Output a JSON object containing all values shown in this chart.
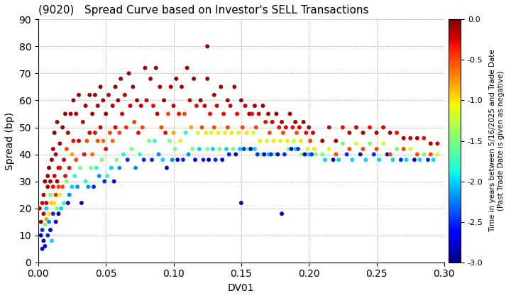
{
  "title": "(9020)   Spread Curve based on Investor's SELL Transactions",
  "xlabel": "DV01",
  "ylabel": "Spread (bp)",
  "xlim": [
    0.0,
    0.3
  ],
  "ylim": [
    0,
    90
  ],
  "xticks": [
    0.0,
    0.05,
    0.1,
    0.15,
    0.2,
    0.25,
    0.3
  ],
  "yticks": [
    0,
    10,
    20,
    30,
    40,
    50,
    60,
    70,
    80,
    90
  ],
  "colorbar_label": "Time in years between 5/16/2025 and Trade Date\n(Past Trade Date is given as negative)",
  "colorbar_vmin": -3.0,
  "colorbar_vmax": 0.0,
  "colorbar_ticks": [
    0.0,
    -0.5,
    -1.0,
    -1.5,
    -2.0,
    -2.5,
    -3.0
  ],
  "marker_size": 18,
  "background_color": "#ffffff",
  "grid_color": "#999999",
  "points": [
    [
      0.001,
      20,
      -0.1
    ],
    [
      0.002,
      15,
      -0.05
    ],
    [
      0.002,
      10,
      -2.9
    ],
    [
      0.003,
      5,
      -2.8
    ],
    [
      0.003,
      12,
      -2.5
    ],
    [
      0.003,
      22,
      -0.2
    ],
    [
      0.004,
      8,
      -2.9
    ],
    [
      0.004,
      18,
      -0.15
    ],
    [
      0.004,
      25,
      -0.1
    ],
    [
      0.005,
      14,
      -1.5
    ],
    [
      0.005,
      30,
      -0.05
    ],
    [
      0.005,
      6,
      -2.7
    ],
    [
      0.006,
      20,
      -2.0
    ],
    [
      0.006,
      22,
      -0.2
    ],
    [
      0.006,
      16,
      -0.8
    ],
    [
      0.007,
      28,
      -0.1
    ],
    [
      0.007,
      10,
      -2.5
    ],
    [
      0.007,
      32,
      -0.08
    ],
    [
      0.008,
      18,
      -1.0
    ],
    [
      0.008,
      35,
      -0.05
    ],
    [
      0.008,
      15,
      -2.2
    ],
    [
      0.009,
      25,
      -1.5
    ],
    [
      0.009,
      12,
      -2.8
    ],
    [
      0.009,
      30,
      -0.15
    ],
    [
      0.01,
      22,
      -0.9
    ],
    [
      0.01,
      8,
      -2.0
    ],
    [
      0.01,
      38,
      -0.05
    ],
    [
      0.011,
      28,
      -0.3
    ],
    [
      0.011,
      18,
      -2.5
    ],
    [
      0.011,
      42,
      -0.1
    ],
    [
      0.012,
      32,
      -0.2
    ],
    [
      0.012,
      22,
      -1.0
    ],
    [
      0.012,
      48,
      -0.05
    ],
    [
      0.013,
      25,
      -0.4
    ],
    [
      0.013,
      15,
      -2.8
    ],
    [
      0.013,
      40,
      -0.15
    ],
    [
      0.014,
      30,
      -0.1
    ],
    [
      0.014,
      20,
      -1.5
    ],
    [
      0.014,
      52,
      -0.08
    ],
    [
      0.015,
      28,
      -0.5
    ],
    [
      0.015,
      35,
      -0.2
    ],
    [
      0.015,
      18,
      -2.9
    ],
    [
      0.016,
      44,
      -0.1
    ],
    [
      0.016,
      25,
      -1.2
    ],
    [
      0.016,
      35,
      -0.3
    ],
    [
      0.017,
      20,
      -2.0
    ],
    [
      0.018,
      50,
      -0.05
    ],
    [
      0.018,
      28,
      -0.5
    ],
    [
      0.019,
      38,
      -0.2
    ],
    [
      0.019,
      22,
      -1.8
    ],
    [
      0.02,
      32,
      -0.3
    ],
    [
      0.02,
      55,
      -0.08
    ],
    [
      0.021,
      42,
      -0.5
    ],
    [
      0.021,
      30,
      -1.5
    ],
    [
      0.022,
      22,
      -2.8
    ],
    [
      0.022,
      48,
      -0.15
    ],
    [
      0.023,
      35,
      -0.3
    ],
    [
      0.023,
      25,
      -2.2
    ],
    [
      0.024,
      55,
      -0.1
    ],
    [
      0.025,
      40,
      -0.8
    ],
    [
      0.025,
      28,
      -2.0
    ],
    [
      0.026,
      60,
      -0.08
    ],
    [
      0.026,
      45,
      -0.3
    ],
    [
      0.027,
      32,
      -1.8
    ],
    [
      0.028,
      55,
      -0.15
    ],
    [
      0.028,
      38,
      -0.5
    ],
    [
      0.029,
      28,
      -2.2
    ],
    [
      0.03,
      62,
      -0.05
    ],
    [
      0.03,
      45,
      -0.2
    ],
    [
      0.031,
      35,
      -1.5
    ],
    [
      0.032,
      22,
      -2.8
    ],
    [
      0.033,
      52,
      -0.15
    ],
    [
      0.034,
      40,
      -0.3
    ],
    [
      0.035,
      30,
      -1.8
    ],
    [
      0.035,
      58,
      -0.1
    ],
    [
      0.036,
      45,
      -0.5
    ],
    [
      0.037,
      28,
      -2.2
    ],
    [
      0.038,
      62,
      -0.05
    ],
    [
      0.038,
      48,
      -0.2
    ],
    [
      0.039,
      35,
      -1.5
    ],
    [
      0.04,
      55,
      -0.1
    ],
    [
      0.04,
      40,
      -0.6
    ],
    [
      0.041,
      28,
      -2.5
    ],
    [
      0.042,
      62,
      -0.08
    ],
    [
      0.042,
      48,
      -0.3
    ],
    [
      0.043,
      35,
      -1.8
    ],
    [
      0.044,
      58,
      -0.15
    ],
    [
      0.044,
      45,
      -0.5
    ],
    [
      0.045,
      32,
      -2.2
    ],
    [
      0.046,
      65,
      -0.05
    ],
    [
      0.046,
      50,
      -0.2
    ],
    [
      0.047,
      38,
      -1.5
    ],
    [
      0.048,
      60,
      -0.1
    ],
    [
      0.048,
      45,
      -0.6
    ],
    [
      0.049,
      30,
      -2.5
    ],
    [
      0.05,
      55,
      -0.08
    ],
    [
      0.05,
      42,
      -0.3
    ],
    [
      0.051,
      32,
      -1.8
    ],
    [
      0.052,
      62,
      -0.15
    ],
    [
      0.053,
      48,
      -0.5
    ],
    [
      0.054,
      35,
      -2.0
    ],
    [
      0.055,
      58,
      -0.1
    ],
    [
      0.055,
      45,
      -0.6
    ],
    [
      0.056,
      30,
      -2.8
    ],
    [
      0.057,
      65,
      -0.05
    ],
    [
      0.057,
      50,
      -0.2
    ],
    [
      0.058,
      38,
      -1.5
    ],
    [
      0.059,
      60,
      -0.1
    ],
    [
      0.06,
      48,
      -0.5
    ],
    [
      0.06,
      35,
      -2.2
    ],
    [
      0.061,
      68,
      -0.08
    ],
    [
      0.062,
      55,
      -0.2
    ],
    [
      0.063,
      40,
      -1.8
    ],
    [
      0.064,
      62,
      -0.15
    ],
    [
      0.065,
      50,
      -0.4
    ],
    [
      0.066,
      38,
      -2.5
    ],
    [
      0.067,
      70,
      -0.05
    ],
    [
      0.068,
      58,
      -0.2
    ],
    [
      0.069,
      42,
      -1.5
    ],
    [
      0.07,
      65,
      -0.1
    ],
    [
      0.071,
      52,
      -0.5
    ],
    [
      0.072,
      35,
      -2.2
    ],
    [
      0.073,
      60,
      -0.08
    ],
    [
      0.074,
      48,
      -0.3
    ],
    [
      0.075,
      40,
      -1.8
    ],
    [
      0.076,
      58,
      -0.15
    ],
    [
      0.077,
      50,
      -0.5
    ],
    [
      0.078,
      38,
      -2.5
    ],
    [
      0.079,
      72,
      -0.08
    ],
    [
      0.08,
      60,
      -0.2
    ],
    [
      0.082,
      45,
      -1.5
    ],
    [
      0.083,
      68,
      -0.15
    ],
    [
      0.084,
      38,
      -2.5
    ],
    [
      0.085,
      58,
      -0.3
    ],
    [
      0.086,
      45,
      -1.8
    ],
    [
      0.087,
      72,
      -0.05
    ],
    [
      0.088,
      55,
      -0.2
    ],
    [
      0.089,
      40,
      -2.2
    ],
    [
      0.09,
      65,
      -0.1
    ],
    [
      0.091,
      50,
      -0.5
    ],
    [
      0.092,
      38,
      -2.0
    ],
    [
      0.093,
      60,
      -0.08
    ],
    [
      0.094,
      48,
      -0.3
    ],
    [
      0.095,
      35,
      -2.8
    ],
    [
      0.096,
      55,
      -0.5
    ],
    [
      0.097,
      45,
      -1.5
    ],
    [
      0.098,
      65,
      -0.1
    ],
    [
      0.099,
      38,
      -2.2
    ],
    [
      0.1,
      58,
      -0.2
    ],
    [
      0.1,
      48,
      -0.8
    ],
    [
      0.101,
      42,
      -1.5
    ],
    [
      0.102,
      68,
      -0.08
    ],
    [
      0.103,
      38,
      -2.8
    ],
    [
      0.104,
      55,
      -0.3
    ],
    [
      0.105,
      45,
      -1.2
    ],
    [
      0.106,
      65,
      -0.1
    ],
    [
      0.107,
      38,
      -2.5
    ],
    [
      0.108,
      55,
      -0.5
    ],
    [
      0.109,
      48,
      -1.8
    ],
    [
      0.11,
      72,
      -0.05
    ],
    [
      0.111,
      40,
      -2.2
    ],
    [
      0.112,
      60,
      -0.2
    ],
    [
      0.113,
      50,
      -0.8
    ],
    [
      0.114,
      42,
      -1.5
    ],
    [
      0.115,
      68,
      -0.08
    ],
    [
      0.116,
      38,
      -2.8
    ],
    [
      0.117,
      58,
      -0.3
    ],
    [
      0.118,
      48,
      -1.2
    ],
    [
      0.119,
      42,
      -2.0
    ],
    [
      0.12,
      60,
      -0.1
    ],
    [
      0.121,
      50,
      -0.5
    ],
    [
      0.122,
      38,
      -2.5
    ],
    [
      0.123,
      58,
      -0.2
    ],
    [
      0.124,
      48,
      -1.0
    ],
    [
      0.125,
      42,
      -1.5
    ],
    [
      0.125,
      68,
      -0.08
    ],
    [
      0.125,
      80,
      -0.05
    ],
    [
      0.126,
      38,
      -2.8
    ],
    [
      0.127,
      55,
      -0.3
    ],
    [
      0.128,
      48,
      -1.2
    ],
    [
      0.129,
      42,
      -2.0
    ],
    [
      0.13,
      62,
      -0.1
    ],
    [
      0.13,
      50,
      -0.5
    ],
    [
      0.131,
      38,
      -2.5
    ],
    [
      0.132,
      58,
      -0.2
    ],
    [
      0.133,
      48,
      -1.0
    ],
    [
      0.134,
      42,
      -1.5
    ],
    [
      0.135,
      65,
      -0.08
    ],
    [
      0.136,
      38,
      -2.8
    ],
    [
      0.137,
      55,
      -0.3
    ],
    [
      0.138,
      48,
      -1.2
    ],
    [
      0.139,
      42,
      -2.0
    ],
    [
      0.14,
      60,
      -0.1
    ],
    [
      0.14,
      50,
      -0.5
    ],
    [
      0.141,
      40,
      -2.5
    ],
    [
      0.142,
      58,
      -0.2
    ],
    [
      0.143,
      48,
      -1.0
    ],
    [
      0.144,
      42,
      -1.5
    ],
    [
      0.145,
      65,
      -0.08
    ],
    [
      0.146,
      40,
      -2.8
    ],
    [
      0.147,
      55,
      -0.3
    ],
    [
      0.148,
      48,
      -1.2
    ],
    [
      0.149,
      42,
      -2.0
    ],
    [
      0.15,
      60,
      -0.1
    ],
    [
      0.15,
      22,
      -2.8
    ],
    [
      0.151,
      50,
      -0.5
    ],
    [
      0.152,
      42,
      -2.5
    ],
    [
      0.153,
      58,
      -0.2
    ],
    [
      0.154,
      48,
      -1.0
    ],
    [
      0.155,
      42,
      -1.5
    ],
    [
      0.156,
      55,
      -0.08
    ],
    [
      0.157,
      42,
      -2.8
    ],
    [
      0.158,
      55,
      -0.3
    ],
    [
      0.159,
      48,
      -1.2
    ],
    [
      0.16,
      42,
      -2.0
    ],
    [
      0.16,
      58,
      -0.1
    ],
    [
      0.161,
      50,
      -0.5
    ],
    [
      0.162,
      40,
      -2.5
    ],
    [
      0.163,
      55,
      -0.2
    ],
    [
      0.164,
      45,
      -1.0
    ],
    [
      0.165,
      40,
      -1.5
    ],
    [
      0.166,
      58,
      -0.08
    ],
    [
      0.167,
      40,
      -2.8
    ],
    [
      0.168,
      52,
      -0.3
    ],
    [
      0.169,
      45,
      -1.2
    ],
    [
      0.17,
      40,
      -2.0
    ],
    [
      0.17,
      55,
      -0.1
    ],
    [
      0.171,
      48,
      -0.5
    ],
    [
      0.172,
      40,
      -2.5
    ],
    [
      0.173,
      52,
      -0.2
    ],
    [
      0.174,
      45,
      -1.0
    ],
    [
      0.175,
      40,
      -1.5
    ],
    [
      0.176,
      55,
      -0.08
    ],
    [
      0.177,
      40,
      -2.8
    ],
    [
      0.178,
      50,
      -0.3
    ],
    [
      0.179,
      45,
      -1.2
    ],
    [
      0.18,
      18,
      -2.8
    ],
    [
      0.18,
      52,
      -0.1
    ],
    [
      0.181,
      48,
      -0.5
    ],
    [
      0.182,
      40,
      -2.5
    ],
    [
      0.183,
      50,
      -0.2
    ],
    [
      0.184,
      45,
      -1.0
    ],
    [
      0.185,
      42,
      -1.5
    ],
    [
      0.186,
      55,
      -0.08
    ],
    [
      0.187,
      42,
      -2.8
    ],
    [
      0.188,
      50,
      -0.3
    ],
    [
      0.189,
      45,
      -1.2
    ],
    [
      0.19,
      42,
      -2.0
    ],
    [
      0.19,
      52,
      -0.1
    ],
    [
      0.191,
      48,
      -0.5
    ],
    [
      0.192,
      42,
      -2.5
    ],
    [
      0.193,
      50,
      -0.2
    ],
    [
      0.194,
      45,
      -1.0
    ],
    [
      0.195,
      40,
      -1.5
    ],
    [
      0.196,
      52,
      -0.08
    ],
    [
      0.197,
      40,
      -2.8
    ],
    [
      0.198,
      48,
      -0.3
    ],
    [
      0.199,
      42,
      -1.2
    ],
    [
      0.2,
      40,
      -2.0
    ],
    [
      0.2,
      50,
      -0.1
    ],
    [
      0.201,
      45,
      -0.5
    ],
    [
      0.202,
      40,
      -2.5
    ],
    [
      0.203,
      48,
      -0.2
    ],
    [
      0.204,
      42,
      -1.0
    ],
    [
      0.205,
      40,
      -1.5
    ],
    [
      0.21,
      45,
      -0.1
    ],
    [
      0.21,
      40,
      -1.5
    ],
    [
      0.212,
      38,
      -2.0
    ],
    [
      0.215,
      50,
      -0.2
    ],
    [
      0.215,
      42,
      -1.2
    ],
    [
      0.218,
      38,
      -2.8
    ],
    [
      0.22,
      45,
      -0.1
    ],
    [
      0.22,
      40,
      -0.5
    ],
    [
      0.222,
      38,
      -2.0
    ],
    [
      0.225,
      50,
      -0.3
    ],
    [
      0.225,
      44,
      -1.5
    ],
    [
      0.228,
      40,
      -2.5
    ],
    [
      0.23,
      48,
      -0.1
    ],
    [
      0.23,
      42,
      -0.5
    ],
    [
      0.232,
      38,
      -2.0
    ],
    [
      0.235,
      50,
      -0.2
    ],
    [
      0.235,
      44,
      -1.2
    ],
    [
      0.238,
      40,
      -2.8
    ],
    [
      0.24,
      48,
      -0.1
    ],
    [
      0.24,
      42,
      -0.5
    ],
    [
      0.242,
      38,
      -2.0
    ],
    [
      0.245,
      50,
      -0.3
    ],
    [
      0.245,
      44,
      -1.5
    ],
    [
      0.248,
      40,
      -2.5
    ],
    [
      0.25,
      48,
      -0.1
    ],
    [
      0.25,
      42,
      -0.5
    ],
    [
      0.252,
      38,
      -2.0
    ],
    [
      0.255,
      50,
      -0.2
    ],
    [
      0.255,
      44,
      -1.2
    ],
    [
      0.258,
      40,
      -2.8
    ],
    [
      0.26,
      48,
      -0.1
    ],
    [
      0.26,
      40,
      -0.5
    ],
    [
      0.262,
      38,
      -2.0
    ],
    [
      0.265,
      48,
      -0.3
    ],
    [
      0.265,
      42,
      -1.5
    ],
    [
      0.268,
      38,
      -2.5
    ],
    [
      0.27,
      46,
      -0.1
    ],
    [
      0.27,
      42,
      -0.5
    ],
    [
      0.272,
      38,
      -2.0
    ],
    [
      0.275,
      46,
      -0.2
    ],
    [
      0.275,
      42,
      -1.2
    ],
    [
      0.278,
      38,
      -2.8
    ],
    [
      0.28,
      46,
      -0.1
    ],
    [
      0.28,
      40,
      -0.5
    ],
    [
      0.282,
      38,
      -2.0
    ],
    [
      0.285,
      46,
      -0.3
    ],
    [
      0.285,
      40,
      -1.5
    ],
    [
      0.288,
      38,
      -2.5
    ],
    [
      0.29,
      44,
      -0.1
    ],
    [
      0.29,
      40,
      -0.5
    ],
    [
      0.292,
      38,
      -2.0
    ],
    [
      0.295,
      44,
      -0.2
    ],
    [
      0.295,
      40,
      -1.2
    ]
  ]
}
